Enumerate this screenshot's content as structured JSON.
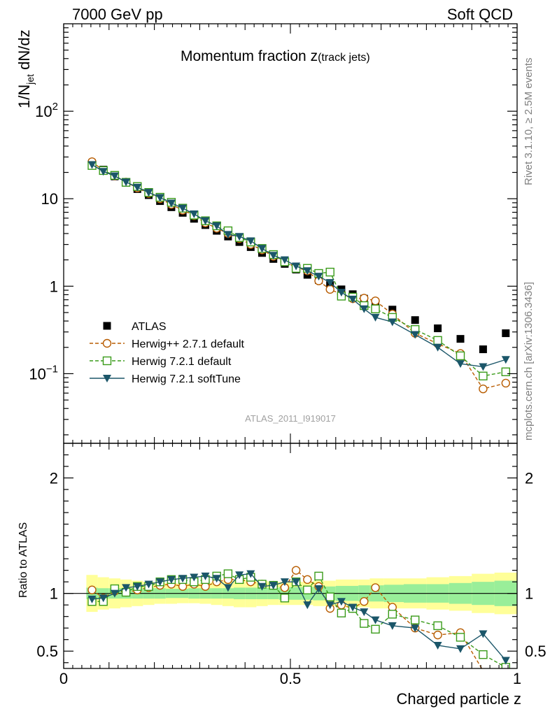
{
  "header": {
    "left": "7000 GeV pp",
    "right": "Soft QCD"
  },
  "side_labels": {
    "rivet": "Rivet 3.1.10, ≥ 2.5M events",
    "source": "mcplots.cern.ch [arXiv:1306.3436]"
  },
  "chart_data": [
    {
      "type": "scatter",
      "panel": "main",
      "title_main": "Momentum fraction ",
      "title_z": "z",
      "title_sub": "(track jets)",
      "ylabel_main": "1/N",
      "ylabel_sub": "jet",
      "ylabel_tail": " dN/dz",
      "yscale": "log",
      "ylim": [
        0.016,
        1000
      ],
      "xlim": [
        0,
        1
      ],
      "yticks": [
        {
          "value": 0.1,
          "base": "10",
          "exp": "−1"
        },
        {
          "value": 1,
          "label": "1"
        },
        {
          "value": 10,
          "label": "10"
        },
        {
          "value": 100,
          "base": "10",
          "exp": "2"
        }
      ],
      "analysis_tag": "ATLAS_2011_I919017",
      "x": [
        0.0625,
        0.0875,
        0.1125,
        0.1375,
        0.1625,
        0.1875,
        0.2125,
        0.2375,
        0.2625,
        0.2875,
        0.3125,
        0.3375,
        0.3625,
        0.3875,
        0.4125,
        0.4375,
        0.4625,
        0.4875,
        0.5125,
        0.5375,
        0.5625,
        0.5875,
        0.6125,
        0.6375,
        0.6625,
        0.6875,
        0.725,
        0.775,
        0.825,
        0.875,
        0.925,
        0.975
      ],
      "series": [
        {
          "name": "ATLAS",
          "style": "data",
          "color": "#000000",
          "values": [
            25.5,
            21.5,
            18.0,
            15.2,
            12.9,
            11.0,
            9.4,
            8.0,
            6.9,
            5.9,
            5.0,
            4.3,
            3.7,
            3.2,
            2.8,
            2.4,
            2.05,
            1.8,
            1.55,
            1.35,
            1.18,
            1.03,
            0.92,
            0.81,
            0.72,
            0.64,
            0.54,
            0.41,
            0.33,
            0.25,
            0.19,
            0.29
          ]
        },
        {
          "name": "Herwig++ 2.7.1 default",
          "style": "circle",
          "color": "#b85c00",
          "values": [
            26.5,
            21.0,
            18.3,
            15.5,
            13.3,
            11.5,
            10.0,
            8.6,
            7.4,
            6.4,
            5.3,
            4.6,
            4.0,
            3.5,
            3.0,
            2.6,
            2.2,
            1.9,
            1.65,
            1.5,
            1.15,
            0.92,
            0.81,
            0.72,
            0.73,
            0.68,
            0.48,
            0.29,
            0.22,
            0.17,
            0.067,
            0.078
          ]
        },
        {
          "name": "Herwig 7.2.1 default",
          "style": "square",
          "color": "#3a9b1a",
          "values": [
            24.0,
            21.0,
            18.5,
            15.4,
            13.8,
            11.8,
            10.4,
            9.1,
            7.8,
            6.5,
            5.6,
            4.9,
            4.3,
            3.6,
            3.2,
            2.7,
            2.3,
            1.9,
            1.6,
            1.6,
            1.4,
            1.45,
            0.77,
            0.75,
            0.6,
            0.55,
            0.44,
            0.32,
            0.24,
            0.16,
            0.094,
            0.105
          ]
        },
        {
          "name": "Herwig 7.2.1 softTune",
          "style": "triangle",
          "color": "#1b5669",
          "values": [
            24.5,
            20.5,
            18.2,
            15.5,
            13.5,
            11.8,
            10.3,
            8.9,
            7.8,
            6.7,
            5.6,
            4.9,
            3.9,
            3.7,
            3.3,
            2.7,
            2.25,
            2.0,
            1.7,
            1.5,
            1.3,
            1.1,
            0.85,
            0.71,
            0.55,
            0.44,
            0.39,
            0.28,
            0.2,
            0.13,
            0.12,
            0.145
          ]
        }
      ]
    },
    {
      "type": "scatter",
      "panel": "ratio",
      "ylabel": "Ratio to ATLAS",
      "xlabel": "Charged particle z",
      "xlim": [
        0,
        1
      ],
      "ylim": [
        0.35,
        2.3
      ],
      "xticks": [
        {
          "value": 0,
          "label": "0"
        },
        {
          "value": 0.5,
          "label": "0.5"
        },
        {
          "value": 1,
          "label": "1"
        }
      ],
      "yticks": [
        {
          "value": 0.5,
          "label": "0.5"
        },
        {
          "value": 1,
          "label": "1"
        },
        {
          "value": 2,
          "label": "2"
        }
      ],
      "band_inner": [
        0.05,
        0.045,
        0.045,
        0.045,
        0.045,
        0.045,
        0.045,
        0.04,
        0.04,
        0.045,
        0.045,
        0.045,
        0.045,
        0.05,
        0.05,
        0.05,
        0.05,
        0.055,
        0.055,
        0.055,
        0.06,
        0.06,
        0.065,
        0.065,
        0.07,
        0.07,
        0.075,
        0.08,
        0.08,
        0.09,
        0.1,
        0.11
      ],
      "band_outer": [
        0.16,
        0.14,
        0.13,
        0.12,
        0.11,
        0.1,
        0.09,
        0.09,
        0.085,
        0.085,
        0.09,
        0.1,
        0.11,
        0.12,
        0.12,
        0.11,
        0.1,
        0.1,
        0.1,
        0.1,
        0.11,
        0.11,
        0.12,
        0.12,
        0.12,
        0.13,
        0.13,
        0.13,
        0.14,
        0.15,
        0.17,
        0.18
      ],
      "series": [
        {
          "name": "Herwig++ 2.7.1 default",
          "style": "circle",
          "color": "#b85c00",
          "values": [
            1.03,
            0.96,
            1.02,
            1.01,
            1.03,
            1.05,
            1.07,
            1.08,
            1.06,
            1.08,
            1.06,
            1.1,
            1.12,
            1.12,
            1.1,
            1.08,
            1.07,
            1.05,
            1.2,
            1.12,
            1.06,
            0.87,
            0.9,
            0.87,
            0.93,
            1.05,
            0.88,
            0.7,
            0.64,
            0.66,
            0.33,
            0.27
          ]
        },
        {
          "name": "Herwig 7.2.1 default",
          "style": "square",
          "color": "#3a9b1a",
          "values": [
            0.93,
            0.93,
            1.04,
            1.01,
            1.06,
            1.06,
            1.1,
            1.12,
            1.12,
            1.1,
            1.12,
            1.15,
            1.17,
            1.12,
            1.14,
            1.08,
            1.07,
            0.96,
            1.1,
            1.03,
            1.15,
            0.97,
            0.83,
            0.87,
            0.74,
            0.69,
            0.82,
            0.77,
            0.72,
            0.62,
            0.47,
            0.36
          ]
        },
        {
          "name": "Herwig 7.2.1 softTune",
          "style": "triangle",
          "color": "#1b5669",
          "values": [
            0.95,
            0.96,
            1.0,
            1.05,
            1.06,
            1.08,
            1.1,
            1.12,
            1.13,
            1.14,
            1.15,
            1.13,
            1.05,
            1.16,
            1.17,
            1.06,
            1.07,
            1.1,
            1.1,
            0.9,
            1.04,
            0.9,
            0.93,
            0.88,
            0.84,
            0.77,
            0.72,
            0.7,
            0.55,
            0.52,
            0.65,
            0.42
          ]
        }
      ]
    }
  ]
}
